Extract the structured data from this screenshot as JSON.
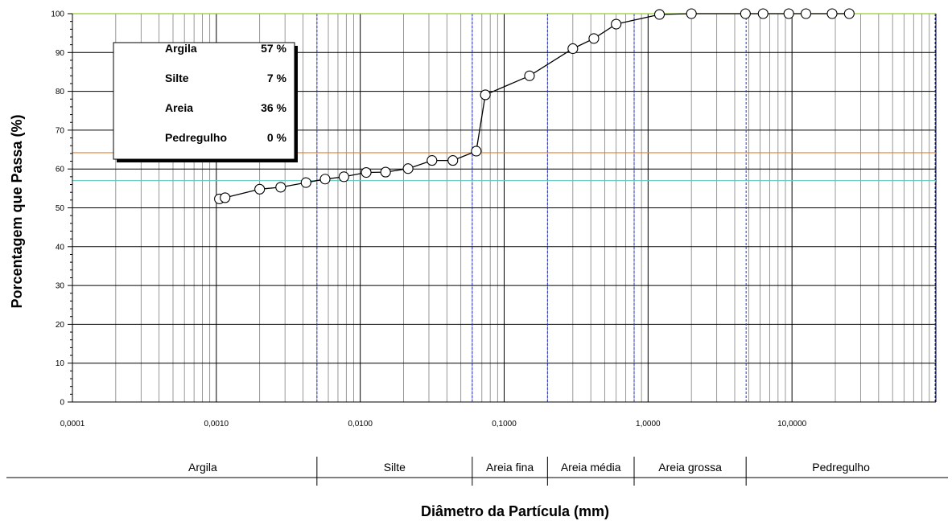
{
  "chart_data": {
    "type": "scatter",
    "title": "",
    "xlabel": "Diâmetro da Partícula (mm)",
    "ylabel": "Porcentagem que Passa (%)",
    "xscale": "log",
    "xlim": [
      0.0001,
      100
    ],
    "ylim": [
      0,
      100
    ],
    "grid": true,
    "xtick_labels": [
      "0,0001",
      "0,0010",
      "0,0100",
      "0,1000",
      "1,0000",
      "10,0000"
    ],
    "xtick_values": [
      0.0001,
      0.001,
      0.01,
      0.1,
      1,
      10
    ],
    "ytick_labels": [
      "0",
      "10",
      "20",
      "30",
      "40",
      "50",
      "60",
      "70",
      "80",
      "90",
      "100"
    ],
    "series": [
      {
        "x": [
          0.00105,
          0.00115,
          0.002,
          0.0028,
          0.0042,
          0.0057,
          0.0077,
          0.011,
          0.015,
          0.0215,
          0.0315,
          0.044,
          0.064,
          0.074,
          0.15,
          0.3,
          0.42,
          0.6,
          1.2,
          2.0,
          4.75,
          6.3,
          9.5,
          12.5,
          19.0,
          25.0
        ],
        "y": [
          52.3,
          52.6,
          54.8,
          55.3,
          56.5,
          57.4,
          58.0,
          59.1,
          59.2,
          60.1,
          62.2,
          62.2,
          64.6,
          79.1,
          84.0,
          91.0,
          93.6,
          97.3,
          99.8,
          100,
          100,
          100,
          100,
          100,
          100,
          100
        ]
      }
    ],
    "reference_lines": [
      {
        "y": 100,
        "color": "#99cc33"
      },
      {
        "y": 64.2,
        "color": "#e8822a"
      },
      {
        "y": 57,
        "color": "#5dc8c0"
      }
    ],
    "class_boundaries_x": [
      0.005,
      0.06,
      0.2,
      0.8,
      4.8,
      100
    ],
    "legend": {
      "position": "top-left",
      "rows": [
        {
          "label": "Argila",
          "value": "57 %"
        },
        {
          "label": "Silte",
          "value": "7 %"
        },
        {
          "label": "Areia",
          "value": "36 %"
        },
        {
          "label": "Pedregulho",
          "value": "0 %"
        }
      ]
    },
    "classification": [
      {
        "label": "Argila",
        "x_from": 0.0001,
        "x_to": 0.005
      },
      {
        "label": "Silte",
        "x_from": 0.005,
        "x_to": 0.06
      },
      {
        "label": "Areia fina",
        "x_from": 0.06,
        "x_to": 0.2
      },
      {
        "label": "Areia média",
        "x_from": 0.2,
        "x_to": 0.8
      },
      {
        "label": "Areia grossa",
        "x_from": 0.8,
        "x_to": 4.8
      },
      {
        "label": "Pedregulho",
        "x_from": 4.8,
        "x_to": 100
      }
    ],
    "colors": {
      "major_grid": "#000000",
      "minor_grid": "#7f7f7f",
      "boundary": "#2233cc",
      "series": "#000000",
      "marker_fill": "#ffffff"
    }
  }
}
